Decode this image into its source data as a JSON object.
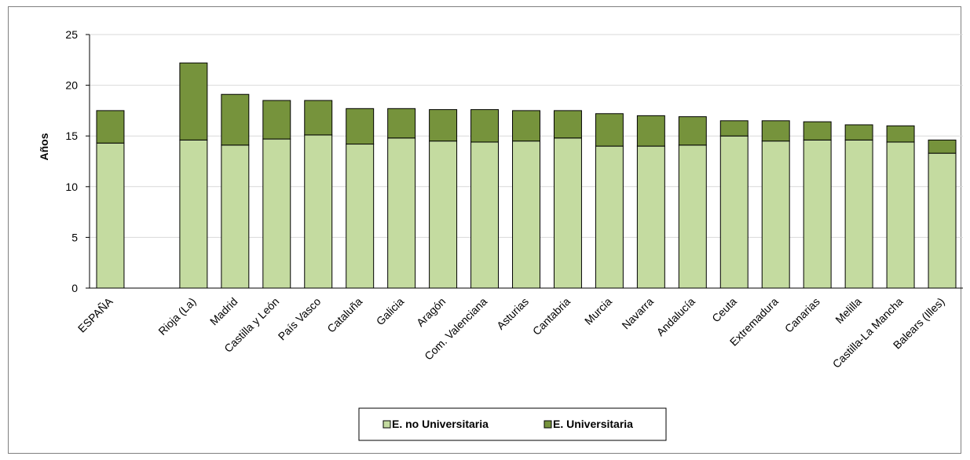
{
  "chart_data": {
    "type": "bar",
    "stacked": true,
    "title": "",
    "xlabel": "",
    "ylabel": "Años",
    "ylim": [
      0,
      25
    ],
    "yticks": [
      0,
      5,
      10,
      15,
      20,
      25
    ],
    "grid": true,
    "legend_position": "bottom",
    "categories": [
      "ESPAÑA",
      "",
      "Rioja (La)",
      "Madrid",
      "Castilla y León",
      "País Vasco",
      "Cataluña",
      "Galicia",
      "Aragón",
      "Com. Valenciana",
      "Asturias",
      "Cantabria",
      "Murcia",
      "Navarra",
      "Andalucía",
      "Ceuta",
      "Extremadura",
      "Canarias",
      "Melilla",
      "Castilla-La Mancha",
      "Balears (Illes)"
    ],
    "series": [
      {
        "name": "E. no Universitaria",
        "color": "#c4dba0",
        "values": [
          14.3,
          null,
          14.6,
          14.1,
          14.7,
          15.1,
          14.2,
          14.8,
          14.5,
          14.4,
          14.5,
          14.8,
          14.0,
          14.0,
          14.1,
          15.0,
          14.5,
          14.6,
          14.6,
          14.4,
          13.3
        ]
      },
      {
        "name": "E. Universitaria",
        "color": "#76933c",
        "values": [
          3.2,
          null,
          7.6,
          5.0,
          3.8,
          3.4,
          3.5,
          2.9,
          3.1,
          3.2,
          3.0,
          2.7,
          3.2,
          3.0,
          2.8,
          1.5,
          2.0,
          1.8,
          1.5,
          1.6,
          1.3
        ]
      }
    ]
  }
}
